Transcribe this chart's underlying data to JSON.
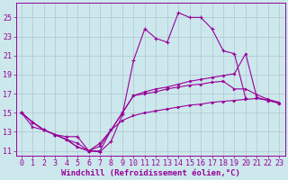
{
  "bg_color": "#cce8ec",
  "line_color": "#990099",
  "grid_color": "#aabbcc",
  "xlabel": "Windchill (Refroidissement éolien,°C)",
  "xlabel_color": "#990099",
  "xlabel_fontsize": 6.5,
  "tick_color": "#990099",
  "tick_fontsize": 6,
  "xlim": [
    -0.5,
    23.5
  ],
  "ylim": [
    10.5,
    26.5
  ],
  "yticks": [
    11,
    13,
    15,
    17,
    19,
    21,
    23,
    25
  ],
  "xticks": [
    0,
    1,
    2,
    3,
    4,
    5,
    6,
    7,
    8,
    9,
    10,
    11,
    12,
    13,
    14,
    15,
    16,
    17,
    18,
    19,
    20,
    21,
    22,
    23
  ],
  "line_spike_x": [
    0,
    1,
    2,
    3,
    4,
    5,
    6,
    7,
    8,
    9,
    10,
    11,
    12,
    13,
    14,
    15,
    16,
    17,
    18,
    19,
    20,
    21,
    22,
    23
  ],
  "line_spike_y": [
    15.0,
    14.0,
    13.2,
    12.7,
    12.5,
    12.5,
    11.0,
    10.9,
    12.0,
    14.8,
    20.5,
    23.8,
    22.8,
    22.4,
    25.5,
    25.0,
    25.0,
    23.8,
    21.5,
    21.2,
    16.5,
    null,
    null,
    null
  ],
  "line_mid_x": [
    0,
    1,
    2,
    3,
    4,
    5,
    6,
    7,
    8,
    9,
    10,
    11,
    12,
    13,
    14,
    15,
    16,
    17,
    18,
    19,
    20,
    21,
    22,
    23
  ],
  "line_mid_y": [
    15.0,
    14.0,
    13.2,
    12.7,
    12.2,
    11.8,
    11.0,
    11.5,
    13.2,
    15.0,
    16.8,
    17.2,
    17.5,
    17.7,
    18.0,
    18.3,
    18.5,
    18.7,
    18.9,
    19.1,
    21.2,
    16.6,
    16.3,
    16.0
  ],
  "line_upper_x": [
    0,
    1,
    2,
    3,
    4,
    5,
    6,
    7,
    8,
    9,
    10,
    11,
    12,
    13,
    14,
    15,
    16,
    17,
    18,
    19,
    20,
    21,
    22,
    23
  ],
  "line_upper_y": [
    15.0,
    14.0,
    13.2,
    12.7,
    12.2,
    11.4,
    11.0,
    11.0,
    13.2,
    15.0,
    16.8,
    17.0,
    17.2,
    17.5,
    17.7,
    17.9,
    18.0,
    18.2,
    18.3,
    17.5,
    17.5,
    16.9,
    16.4,
    16.1
  ],
  "line_lower_x": [
    0,
    1,
    2,
    3,
    4,
    5,
    6,
    7,
    8,
    9,
    10,
    11,
    12,
    13,
    14,
    15,
    16,
    17,
    18,
    19,
    20,
    21,
    22,
    23
  ],
  "line_lower_y": [
    15.0,
    13.5,
    13.2,
    12.7,
    12.2,
    11.4,
    11.0,
    11.8,
    13.2,
    14.2,
    14.7,
    15.0,
    15.2,
    15.4,
    15.6,
    15.8,
    15.9,
    16.1,
    16.2,
    16.3,
    16.4,
    16.5,
    16.3,
    16.0
  ]
}
